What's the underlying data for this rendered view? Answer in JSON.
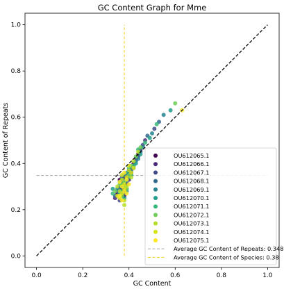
{
  "chart_data": {
    "type": "scatter",
    "title": "GC Content Graph for Mme",
    "xlabel": "GC Content",
    "ylabel": "GC Content of Repeats",
    "xlim": [
      -0.05,
      1.05
    ],
    "ylim": [
      -0.05,
      1.05
    ],
    "xticks": [
      "0.0",
      "0.2",
      "0.4",
      "0.6",
      "0.8",
      "1.0"
    ],
    "yticks": [
      "0.0",
      "0.2",
      "0.4",
      "0.6",
      "0.8",
      "1.0"
    ],
    "grid": false,
    "legend_position": "lower-right",
    "series": [
      {
        "name": "OU612065.1",
        "color": "#440154",
        "points": [
          [
            0.36,
            0.33
          ],
          [
            0.38,
            0.34
          ],
          [
            0.4,
            0.37
          ],
          [
            0.42,
            0.4
          ],
          [
            0.37,
            0.29
          ],
          [
            0.39,
            0.31
          ],
          [
            0.44,
            0.44
          ],
          [
            0.35,
            0.27
          ],
          [
            0.41,
            0.36
          ],
          [
            0.38,
            0.26
          ]
        ]
      },
      {
        "name": "OU612066.1",
        "color": "#482878",
        "points": [
          [
            0.37,
            0.32
          ],
          [
            0.39,
            0.35
          ],
          [
            0.43,
            0.42
          ],
          [
            0.36,
            0.3
          ],
          [
            0.4,
            0.33
          ],
          [
            0.45,
            0.46
          ],
          [
            0.38,
            0.28
          ],
          [
            0.34,
            0.25
          ],
          [
            0.41,
            0.38
          ],
          [
            0.47,
            0.5
          ]
        ]
      },
      {
        "name": "OU612067.1",
        "color": "#3e4989",
        "points": [
          [
            0.38,
            0.33
          ],
          [
            0.4,
            0.36
          ],
          [
            0.44,
            0.43
          ],
          [
            0.37,
            0.31
          ],
          [
            0.39,
            0.29
          ],
          [
            0.46,
            0.48
          ],
          [
            0.35,
            0.28
          ],
          [
            0.42,
            0.39
          ],
          [
            0.51,
            0.55
          ],
          [
            0.36,
            0.24
          ]
        ]
      },
      {
        "name": "OU612068.1",
        "color": "#31688e",
        "points": [
          [
            0.37,
            0.34
          ],
          [
            0.41,
            0.37
          ],
          [
            0.45,
            0.45
          ],
          [
            0.36,
            0.29
          ],
          [
            0.39,
            0.32
          ],
          [
            0.48,
            0.52
          ],
          [
            0.53,
            0.58
          ],
          [
            0.38,
            0.27
          ],
          [
            0.43,
            0.41
          ],
          [
            0.34,
            0.26
          ]
        ]
      },
      {
        "name": "OU612069.1",
        "color": "#26828e",
        "points": [
          [
            0.38,
            0.35
          ],
          [
            0.4,
            0.34
          ],
          [
            0.46,
            0.47
          ],
          [
            0.37,
            0.3
          ],
          [
            0.42,
            0.38
          ],
          [
            0.55,
            0.61
          ],
          [
            0.39,
            0.28
          ],
          [
            0.35,
            0.29
          ],
          [
            0.44,
            0.42
          ],
          [
            0.5,
            0.53
          ]
        ]
      },
      {
        "name": "OU612070.1",
        "color": "#1f9e89",
        "points": [
          [
            0.36,
            0.32
          ],
          [
            0.39,
            0.36
          ],
          [
            0.43,
            0.4
          ],
          [
            0.37,
            0.28
          ],
          [
            0.41,
            0.35
          ],
          [
            0.49,
            0.51
          ],
          [
            0.58,
            0.63
          ],
          [
            0.38,
            0.25
          ],
          [
            0.33,
            0.29
          ],
          [
            0.45,
            0.44
          ]
        ]
      },
      {
        "name": "OU612071.1",
        "color": "#35b779",
        "points": [
          [
            0.37,
            0.31
          ],
          [
            0.4,
            0.38
          ],
          [
            0.42,
            0.39
          ],
          [
            0.38,
            0.3
          ],
          [
            0.44,
            0.46
          ],
          [
            0.36,
            0.27
          ],
          [
            0.52,
            0.57
          ],
          [
            0.39,
            0.33
          ],
          [
            0.33,
            0.27
          ],
          [
            0.47,
            0.49
          ]
        ]
      },
      {
        "name": "OU612072.1",
        "color": "#6ece58",
        "points": [
          [
            0.38,
            0.32
          ],
          [
            0.41,
            0.39
          ],
          [
            0.36,
            0.31
          ],
          [
            0.43,
            0.43
          ],
          [
            0.39,
            0.29
          ],
          [
            0.37,
            0.26
          ],
          [
            0.45,
            0.47
          ],
          [
            0.6,
            0.66
          ],
          [
            0.34,
            0.28
          ],
          [
            0.4,
            0.35
          ]
        ]
      },
      {
        "name": "OU612073.1",
        "color": "#b5de2b",
        "points": [
          [
            0.37,
            0.33
          ],
          [
            0.39,
            0.3
          ],
          [
            0.42,
            0.41
          ],
          [
            0.36,
            0.28
          ],
          [
            0.38,
            0.24
          ],
          [
            0.4,
            0.37
          ],
          [
            0.44,
            0.45
          ],
          [
            0.35,
            0.3
          ],
          [
            0.41,
            0.34
          ],
          [
            0.38,
            0.22
          ]
        ]
      },
      {
        "name": "OU612074.1",
        "color": "#d8e219",
        "points": [
          [
            0.38,
            0.31
          ],
          [
            0.37,
            0.27
          ],
          [
            0.39,
            0.34
          ],
          [
            0.4,
            0.39
          ],
          [
            0.36,
            0.25
          ],
          [
            0.41,
            0.36
          ],
          [
            0.38,
            0.29
          ],
          [
            0.35,
            0.26
          ],
          [
            0.42,
            0.38
          ],
          [
            0.37,
            0.35
          ]
        ]
      },
      {
        "name": "OU612075.1",
        "color": "#fde725",
        "points": [
          [
            0.37,
            0.3
          ],
          [
            0.38,
            0.28
          ],
          [
            0.36,
            0.26
          ],
          [
            0.39,
            0.33
          ],
          [
            0.38,
            0.36
          ],
          [
            0.37,
            0.24
          ],
          [
            0.4,
            0.31
          ],
          [
            0.36,
            0.32
          ],
          [
            0.39,
            0.27
          ],
          [
            0.63,
            0.63
          ]
        ]
      }
    ],
    "reference_lines": [
      {
        "name": "Average GC Content of Repeats: 0.348",
        "orientation": "horizontal",
        "value": 0.348,
        "color": "#b0b0b0"
      },
      {
        "name": "Average GC Content of Species: 0.38",
        "orientation": "vertical",
        "value": 0.38,
        "color": "#f5d630"
      }
    ],
    "diagonal": {
      "from": [
        0,
        0
      ],
      "to": [
        1,
        1
      ],
      "color": "#000000",
      "style": "dashed"
    }
  }
}
